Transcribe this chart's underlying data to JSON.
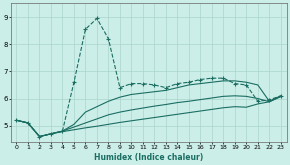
{
  "xlabel": "Humidex (Indice chaleur)",
  "bg_color": "#cceee8",
  "grid_color": "#aad4cc",
  "line_color": "#1a6e62",
  "xlim": [
    -0.5,
    23.5
  ],
  "ylim": [
    4.4,
    9.5
  ],
  "yticks": [
    5,
    6,
    7,
    8,
    9
  ],
  "xticks": [
    0,
    1,
    2,
    3,
    4,
    5,
    6,
    7,
    8,
    9,
    10,
    11,
    12,
    13,
    14,
    15,
    16,
    17,
    18,
    19,
    20,
    21,
    22,
    23
  ],
  "s1_x": [
    0,
    1,
    2,
    3,
    4,
    5,
    6,
    7,
    8,
    9,
    10,
    11,
    12,
    13,
    14,
    15,
    16,
    17,
    18,
    19,
    20,
    21,
    22,
    23
  ],
  "s1_y": [
    5.2,
    5.1,
    4.6,
    4.7,
    4.8,
    6.6,
    8.55,
    8.95,
    8.2,
    6.4,
    6.55,
    6.55,
    6.5,
    6.4,
    6.55,
    6.6,
    6.7,
    6.75,
    6.75,
    6.55,
    6.5,
    5.9,
    5.95,
    6.1
  ],
  "s2_x": [
    0,
    1,
    2,
    3,
    4,
    5,
    6,
    7,
    8,
    9,
    10,
    11,
    12,
    13,
    14,
    15,
    16,
    17,
    18,
    19,
    20,
    21,
    22,
    23
  ],
  "s2_y": [
    5.2,
    5.1,
    4.6,
    4.7,
    4.8,
    5.05,
    5.5,
    5.7,
    5.9,
    6.05,
    6.15,
    6.2,
    6.25,
    6.3,
    6.4,
    6.5,
    6.55,
    6.6,
    6.65,
    6.65,
    6.6,
    6.5,
    5.9,
    6.1
  ],
  "s3_x": [
    0,
    1,
    2,
    3,
    4,
    5,
    6,
    7,
    8,
    9,
    10,
    11,
    12,
    13,
    14,
    15,
    16,
    17,
    18,
    19,
    20,
    21,
    22,
    23
  ],
  "s3_y": [
    5.2,
    5.1,
    4.6,
    4.7,
    4.8,
    4.95,
    5.1,
    5.25,
    5.4,
    5.5,
    5.58,
    5.65,
    5.72,
    5.78,
    5.85,
    5.9,
    5.96,
    6.02,
    6.08,
    6.1,
    6.08,
    6.0,
    5.88,
    6.08
  ],
  "s4_x": [
    0,
    1,
    2,
    3,
    4,
    5,
    6,
    7,
    8,
    9,
    10,
    11,
    12,
    13,
    14,
    15,
    16,
    17,
    18,
    19,
    20,
    21,
    22,
    23
  ],
  "s4_y": [
    5.2,
    5.1,
    4.6,
    4.7,
    4.78,
    4.85,
    4.92,
    4.98,
    5.05,
    5.12,
    5.18,
    5.24,
    5.3,
    5.36,
    5.42,
    5.48,
    5.54,
    5.6,
    5.66,
    5.7,
    5.68,
    5.8,
    5.88,
    6.07
  ]
}
